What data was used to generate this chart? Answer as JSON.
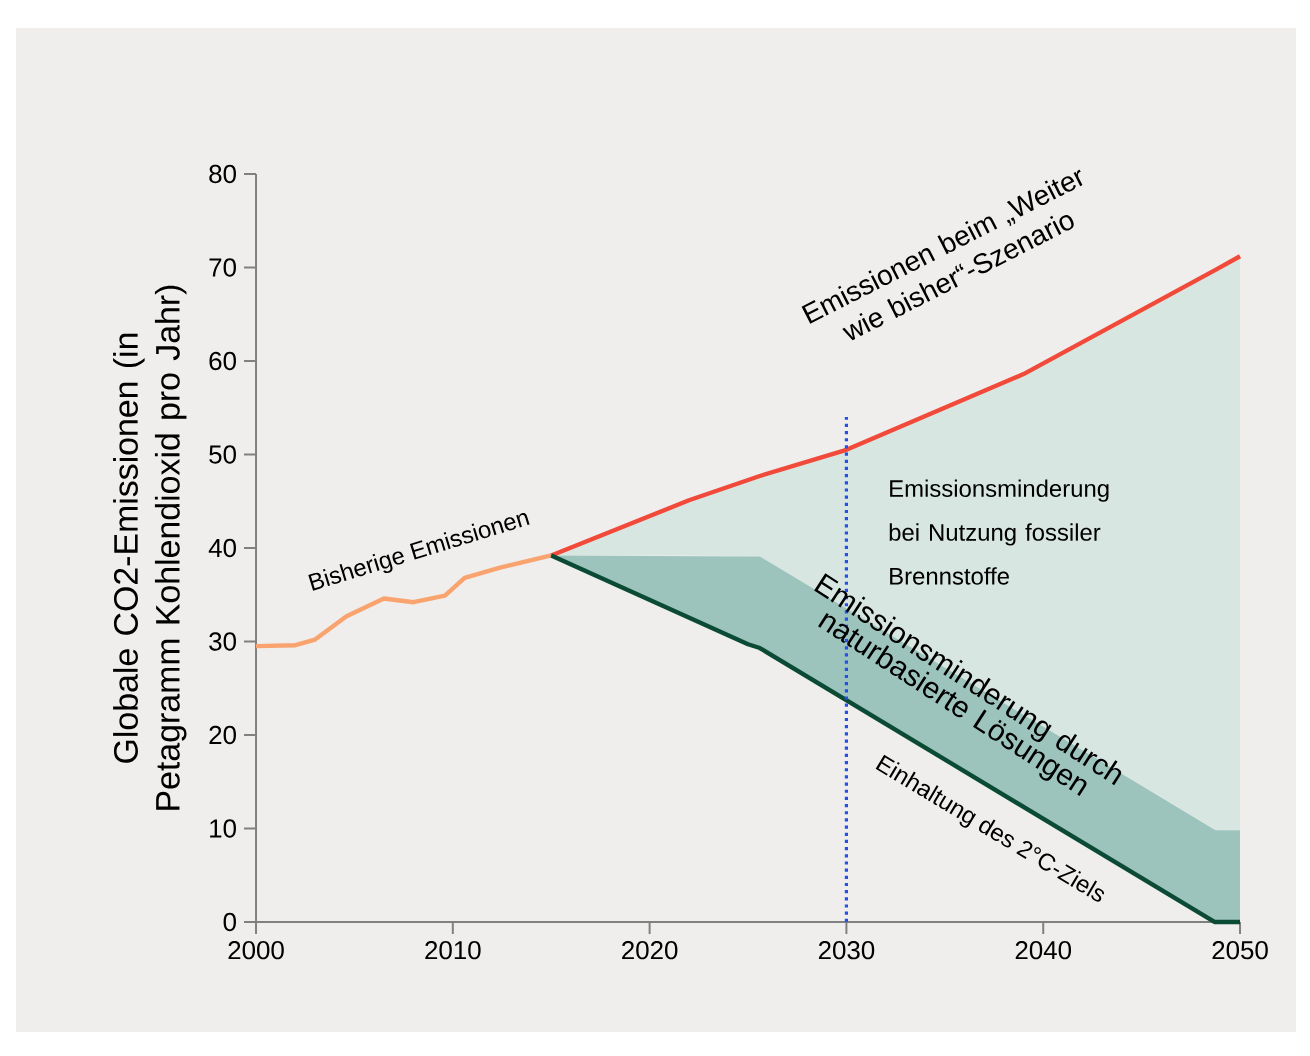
{
  "chart_data": {
    "type": "line",
    "ylabel": "Globale CO2-Emissionen (in Petagramm Kohlendioxid pro Jahr)",
    "xlim": [
      2000,
      2050
    ],
    "ylim": [
      0,
      80
    ],
    "xticks": [
      2000,
      2010,
      2020,
      2030,
      2040,
      2050
    ],
    "yticks": [
      0,
      10,
      20,
      30,
      40,
      50,
      60,
      70,
      80
    ],
    "series": [
      {
        "name": "Bisherige Emissionen",
        "color": "#f9a36f",
        "x": [
          2000,
          2002,
          2003,
          2004.6,
          2006.5,
          2008,
          2009.6,
          2010.6,
          2012.4,
          2015
        ],
        "values": [
          29.5,
          29.6,
          30.2,
          32.7,
          34.6,
          34.2,
          34.9,
          36.8,
          37.9,
          39.2
        ]
      },
      {
        "name": "Emissionen beim „Weiter wie bisher“-Szenario",
        "color": "#f24a3a",
        "x": [
          2015,
          2022,
          2025.6,
          2030,
          2039,
          2048.8,
          2050
        ],
        "values": [
          39.2,
          45.1,
          47.7,
          50.5,
          58.6,
          69.8,
          71.2
        ],
        "lower": [
          39.2,
          39.2,
          39.1,
          33.5,
          22.2,
          9.8,
          9.8
        ],
        "upper": [
          39.2,
          45.1,
          47.7,
          50.5,
          58.6,
          69.8,
          71.2
        ]
      },
      {
        "name": "Einhaltung des 2°C-Ziels",
        "color": "#0b4a35",
        "x": [
          2015,
          2025,
          2025.6,
          2048.7,
          2048.8,
          2050
        ],
        "values": [
          39.2,
          29.7,
          29.3,
          0,
          0,
          0
        ],
        "lower": [
          39.2,
          29.7,
          29.3,
          0,
          0,
          0
        ],
        "upper": [
          39.2,
          39.1,
          39.1,
          9.9,
          9.8,
          9.8
        ]
      }
    ],
    "annotations": [
      "Emissionsminderung bei Nutzung fossiler Brennstoffe",
      "Emissionsminderung durch naturbasierte Lösungen"
    ],
    "ref_lines": [
      {
        "axis": "x",
        "value": 2030,
        "color": "#2450e6",
        "line_style": "dotted"
      }
    ]
  }
}
